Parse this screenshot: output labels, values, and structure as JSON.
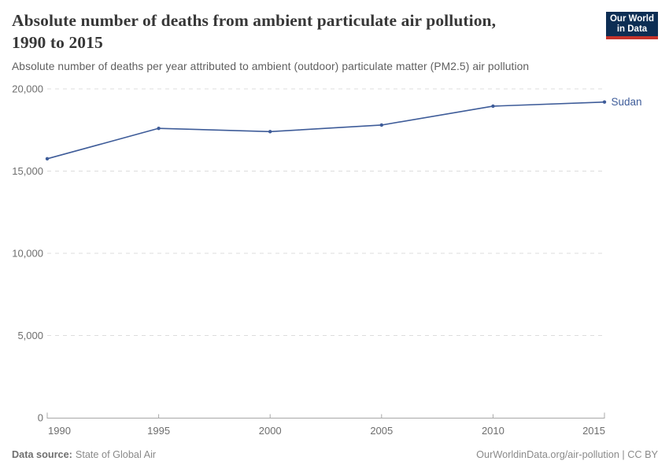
{
  "header": {
    "title_line1": "Absolute number of deaths from ambient particulate air pollution,",
    "title_line2": "1990 to 2015",
    "subtitle": "Absolute number of deaths per year attributed to ambient (outdoor) particulate matter (PM2.5) air pollution",
    "logo": {
      "line1": "Our World",
      "line2": "in Data",
      "bg_color": "#0d2e54",
      "bar_color": "#c5332b"
    }
  },
  "chart_data": {
    "type": "line",
    "title": "Absolute number of deaths from ambient particulate air pollution, 1990 to 2015",
    "x": [
      1990,
      1995,
      2000,
      2005,
      2010,
      2015
    ],
    "series": [
      {
        "name": "Sudan",
        "color": "#3e5c99",
        "values": [
          15750,
          17600,
          17400,
          17800,
          18950,
          19200
        ]
      }
    ],
    "xlim": [
      1990,
      2015
    ],
    "ylim": [
      0,
      20000
    ],
    "xticks": [
      1990,
      1995,
      2000,
      2005,
      2010,
      2015
    ],
    "yticks": [
      0,
      5000,
      10000,
      15000,
      20000
    ],
    "ytick_labels": [
      "0",
      "5,000",
      "10,000",
      "15,000",
      "20,000"
    ],
    "grid": "horizontal-dashed",
    "gridline_color": "#dddddd",
    "axis_color": "#a8a8a8",
    "tick_label_color": "#6e6e6e",
    "legend_position": "end-of-line"
  },
  "footer": {
    "source_label": "Data source:",
    "source_value": "State of Global Air",
    "credit": "OurWorldinData.org/air-pollution | CC BY"
  }
}
